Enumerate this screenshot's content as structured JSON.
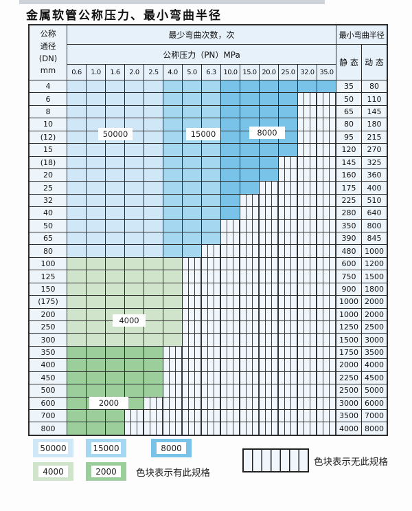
{
  "title": "金属软管公称压力、最小弯曲半径",
  "header": {
    "dn_lines": [
      "公称",
      "通径",
      "(DN)",
      "mm"
    ],
    "bend_cycles": "最少弯曲次数，次",
    "pressure": "公称压力（PN）MPa",
    "pressure_cols": [
      "0.6",
      "1.0",
      "1.6",
      "2.0",
      "2.5",
      "4.0",
      "5.0",
      "6.3",
      "10.0",
      "15.0",
      "20.0",
      "25.0",
      "32.0",
      "35.0"
    ],
    "radius": "最小弯曲半径",
    "static_label": "静 态",
    "dynamic_label": "动 态"
  },
  "colors": {
    "c50000": "#cfe7f6",
    "c15000": "#a6d7f0",
    "c8000": "#79c3e8",
    "c4000": "#cfe4cb",
    "c2000": "#9bce9b",
    "header_bg": "#e7f1fa",
    "label_bg": "#edf5fb",
    "stripe_bg": "#f1f6fc"
  },
  "region_labels": [
    "50000",
    "15000",
    "8000",
    "4000",
    "2000"
  ],
  "rows": [
    {
      "dn": "4",
      "static": "35",
      "dynamic": "80",
      "cells": [
        "50",
        "50",
        "50",
        "50",
        "50",
        "15",
        "15",
        "15",
        "8",
        "8",
        "8",
        "8",
        "8",
        "8"
      ]
    },
    {
      "dn": "6",
      "static": "50",
      "dynamic": "110",
      "cells": [
        "50",
        "50",
        "50",
        "50",
        "50",
        "15",
        "15",
        "15",
        "8",
        "8",
        "8",
        "8",
        "x",
        "x"
      ]
    },
    {
      "dn": "8",
      "static": "65",
      "dynamic": "145",
      "cells": [
        "50",
        "50",
        "50",
        "50",
        "50",
        "15",
        "15",
        "15",
        "8",
        "8",
        "8",
        "8",
        "x",
        "x"
      ]
    },
    {
      "dn": "10",
      "static": "80",
      "dynamic": "180",
      "cells": [
        "50",
        "50",
        "50",
        "50",
        "50",
        "15",
        "15",
        "15",
        "8",
        "8",
        "8",
        "8",
        "x",
        "x"
      ]
    },
    {
      "dn": "(12)",
      "static": "95",
      "dynamic": "215",
      "cells": [
        "50",
        "50",
        "50",
        "50",
        "50",
        "15",
        "15",
        "15",
        "8",
        "8",
        "8",
        "8",
        "x",
        "x"
      ]
    },
    {
      "dn": "15",
      "static": "120",
      "dynamic": "270",
      "cells": [
        "50",
        "50",
        "50",
        "50",
        "50",
        "15",
        "15",
        "15",
        "8",
        "8",
        "8",
        "8",
        "x",
        "x"
      ]
    },
    {
      "dn": "(18)",
      "static": "145",
      "dynamic": "325",
      "cells": [
        "50",
        "50",
        "50",
        "50",
        "50",
        "15",
        "15",
        "15",
        "8",
        "8",
        "8",
        "x",
        "x",
        "x"
      ]
    },
    {
      "dn": "20",
      "static": "160",
      "dynamic": "360",
      "cells": [
        "50",
        "50",
        "50",
        "50",
        "50",
        "15",
        "15",
        "15",
        "8",
        "8",
        "8",
        "x",
        "x",
        "x"
      ]
    },
    {
      "dn": "25",
      "static": "175",
      "dynamic": "400",
      "cells": [
        "50",
        "50",
        "50",
        "50",
        "50",
        "15",
        "15",
        "15",
        "8",
        "8",
        "x",
        "x",
        "x",
        "x"
      ]
    },
    {
      "dn": "32",
      "static": "225",
      "dynamic": "510",
      "cells": [
        "50",
        "50",
        "50",
        "50",
        "50",
        "15",
        "15",
        "15",
        "8",
        "x",
        "x",
        "x",
        "x",
        "x"
      ]
    },
    {
      "dn": "40",
      "static": "280",
      "dynamic": "640",
      "cells": [
        "50",
        "50",
        "50",
        "50",
        "50",
        "15",
        "15",
        "15",
        "8",
        "x",
        "x",
        "x",
        "x",
        "x"
      ]
    },
    {
      "dn": "50",
      "static": "350",
      "dynamic": "800",
      "cells": [
        "50",
        "50",
        "50",
        "50",
        "50",
        "15",
        "15",
        "15",
        "x",
        "x",
        "x",
        "x",
        "x",
        "x"
      ]
    },
    {
      "dn": "65",
      "static": "390",
      "dynamic": "845",
      "cells": [
        "50",
        "50",
        "50",
        "50",
        "50",
        "15",
        "15",
        "15",
        "x",
        "x",
        "x",
        "x",
        "x",
        "x"
      ]
    },
    {
      "dn": "80",
      "static": "480",
      "dynamic": "1000",
      "cells": [
        "50",
        "50",
        "50",
        "50",
        "50",
        "15",
        "15",
        "x",
        "x",
        "x",
        "x",
        "x",
        "x",
        "x"
      ]
    },
    {
      "dn": "100",
      "static": "600",
      "dynamic": "1200",
      "cells": [
        "4",
        "4",
        "4",
        "4",
        "4",
        "4",
        "x",
        "x",
        "x",
        "x",
        "x",
        "x",
        "x",
        "x"
      ]
    },
    {
      "dn": "125",
      "static": "750",
      "dynamic": "1500",
      "cells": [
        "4",
        "4",
        "4",
        "4",
        "4",
        "4",
        "x",
        "x",
        "x",
        "x",
        "x",
        "x",
        "x",
        "x"
      ]
    },
    {
      "dn": "150",
      "static": "900",
      "dynamic": "1800",
      "cells": [
        "4",
        "4",
        "4",
        "4",
        "4",
        "4",
        "x",
        "x",
        "x",
        "x",
        "x",
        "x",
        "x",
        "x"
      ]
    },
    {
      "dn": "(175)",
      "static": "1000",
      "dynamic": "2000",
      "cells": [
        "4",
        "4",
        "4",
        "4",
        "4",
        "4",
        "x",
        "x",
        "x",
        "x",
        "x",
        "x",
        "x",
        "x"
      ]
    },
    {
      "dn": "200",
      "static": "1000",
      "dynamic": "2000",
      "cells": [
        "4",
        "4",
        "4",
        "4",
        "4",
        "4",
        "x",
        "x",
        "x",
        "x",
        "x",
        "x",
        "x",
        "x"
      ]
    },
    {
      "dn": "250",
      "static": "1250",
      "dynamic": "2500",
      "cells": [
        "4",
        "4",
        "4",
        "4",
        "4",
        "4",
        "x",
        "x",
        "x",
        "x",
        "x",
        "x",
        "x",
        "x"
      ]
    },
    {
      "dn": "300",
      "static": "1500",
      "dynamic": "3000",
      "cells": [
        "4",
        "4",
        "4",
        "4",
        "4",
        "4",
        "x",
        "x",
        "x",
        "x",
        "x",
        "x",
        "x",
        "x"
      ]
    },
    {
      "dn": "350",
      "static": "1750",
      "dynamic": "3500",
      "cells": [
        "2",
        "2",
        "2",
        "2",
        "2",
        "x",
        "x",
        "x",
        "x",
        "x",
        "x",
        "x",
        "x",
        "x"
      ]
    },
    {
      "dn": "400",
      "static": "2000",
      "dynamic": "4000",
      "cells": [
        "2",
        "2",
        "2",
        "2",
        "2",
        "x",
        "x",
        "x",
        "x",
        "x",
        "x",
        "x",
        "x",
        "x"
      ]
    },
    {
      "dn": "450",
      "static": "2250",
      "dynamic": "4500",
      "cells": [
        "2",
        "2",
        "2",
        "2",
        "2",
        "x",
        "x",
        "x",
        "x",
        "x",
        "x",
        "x",
        "x",
        "x"
      ]
    },
    {
      "dn": "500",
      "static": "2500",
      "dynamic": "5000",
      "cells": [
        "2",
        "2",
        "2",
        "2",
        "2",
        "x",
        "x",
        "x",
        "x",
        "x",
        "x",
        "x",
        "x",
        "x"
      ]
    },
    {
      "dn": "600",
      "static": "3000",
      "dynamic": "6000",
      "cells": [
        "2",
        "2",
        "2",
        "2",
        "x",
        "x",
        "x",
        "x",
        "x",
        "x",
        "x",
        "x",
        "x",
        "x"
      ]
    },
    {
      "dn": "700",
      "static": "3500",
      "dynamic": "7000",
      "cells": [
        "2",
        "2",
        "2",
        "x",
        "x",
        "x",
        "x",
        "x",
        "x",
        "x",
        "x",
        "x",
        "x",
        "x"
      ]
    },
    {
      "dn": "800",
      "static": "4000",
      "dynamic": "8000",
      "cells": [
        "2",
        "2",
        "2",
        "x",
        "x",
        "x",
        "x",
        "x",
        "x",
        "x",
        "x",
        "x",
        "x",
        "x"
      ]
    }
  ],
  "legend": {
    "items": [
      {
        "label": "50000",
        "color": "c50000"
      },
      {
        "label": "15000",
        "color": "c15000"
      },
      {
        "label": "8000",
        "color": "c8000"
      },
      {
        "label": "4000",
        "color": "c4000"
      },
      {
        "label": "2000",
        "color": "c2000"
      }
    ],
    "has_spec_note": "色块表示有此规格",
    "no_spec_note": "色块表示无此规格"
  }
}
